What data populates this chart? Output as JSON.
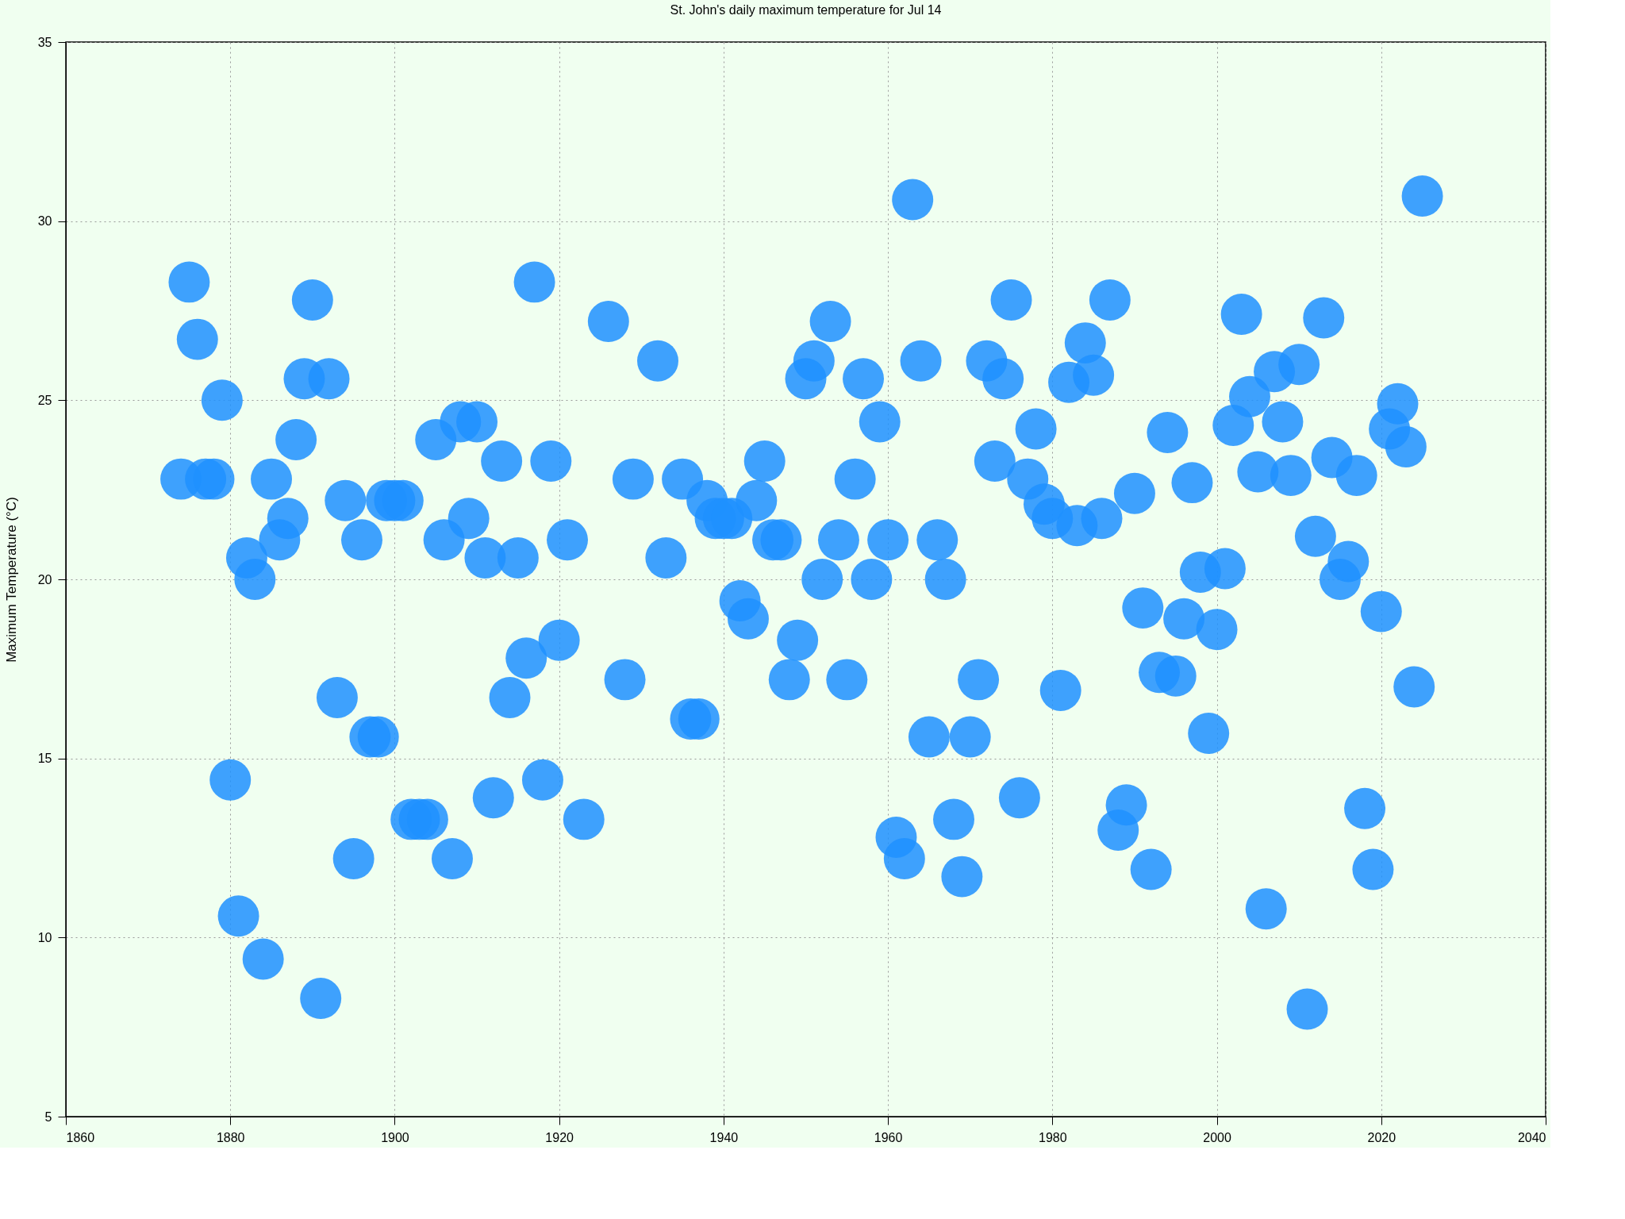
{
  "chart_data": {
    "type": "scatter",
    "title": "St. John's daily maximum temperature for Jul 14",
    "ylabel": "Maximum Temperature (°C)",
    "x": [
      1874,
      1875,
      1876,
      1877,
      1878,
      1879,
      1880,
      1881,
      1882,
      1883,
      1884,
      1885,
      1886,
      1887,
      1888,
      1889,
      1890,
      1891,
      1892,
      1893,
      1894,
      1895,
      1896,
      1897,
      1898,
      1899,
      1900,
      1901,
      1902,
      1903,
      1904,
      1905,
      1906,
      1907,
      1908,
      1909,
      1910,
      1911,
      1912,
      1913,
      1914,
      1915,
      1916,
      1917,
      1918,
      1919,
      1920,
      1921,
      1923,
      1926,
      1928,
      1929,
      1932,
      1933,
      1935,
      1936,
      1937,
      1938,
      1939,
      1940,
      1941,
      1942,
      1943,
      1944,
      1945,
      1946,
      1947,
      1948,
      1949,
      1950,
      1951,
      1952,
      1953,
      1954,
      1955,
      1956,
      1957,
      1958,
      1959,
      1960,
      1961,
      1962,
      1963,
      1964,
      1965,
      1966,
      1967,
      1968,
      1969,
      1970,
      1971,
      1972,
      1973,
      1974,
      1975,
      1976,
      1977,
      1978,
      1979,
      1980,
      1981,
      1982,
      1983,
      1984,
      1985,
      1986,
      1987,
      1988,
      1989,
      1990,
      1991,
      1992,
      1993,
      1994,
      1995,
      1996,
      1997,
      1998,
      1999,
      2000,
      2001,
      2002,
      2003,
      2004,
      2005,
      2006,
      2007,
      2008,
      2009,
      2010,
      2011,
      2012,
      2013,
      2014,
      2015,
      2016,
      2017,
      2018,
      2019,
      2020,
      2021,
      2022,
      2023,
      2024,
      2025
    ],
    "series": [
      {
        "color": "#1e90ff",
        "values": [
          22.8,
          28.3,
          26.7,
          22.8,
          22.8,
          25.0,
          14.4,
          10.6,
          20.6,
          20.0,
          9.4,
          22.8,
          21.1,
          21.7,
          23.9,
          25.6,
          27.8,
          8.3,
          25.6,
          16.7,
          22.2,
          12.2,
          21.1,
          15.6,
          15.6,
          22.2,
          22.2,
          22.2,
          13.3,
          13.3,
          13.3,
          23.9,
          21.1,
          12.2,
          24.4,
          21.7,
          24.4,
          20.6,
          13.9,
          23.3,
          16.7,
          20.6,
          17.8,
          28.3,
          14.4,
          23.3,
          18.3,
          21.1,
          13.3,
          27.2,
          17.2,
          22.8,
          26.1,
          20.6,
          22.8,
          16.1,
          16.1,
          22.2,
          21.7,
          21.7,
          21.7,
          19.4,
          18.9,
          22.2,
          23.3,
          21.1,
          21.1,
          17.2,
          18.3,
          25.6,
          26.1,
          20.0,
          27.2,
          21.1,
          17.2,
          22.8,
          25.6,
          20.0,
          24.4,
          21.1,
          12.8,
          12.2,
          30.6,
          26.1,
          15.6,
          21.1,
          20.0,
          13.3,
          11.7,
          15.6,
          17.2,
          26.1,
          23.3,
          25.6,
          27.8,
          13.9,
          22.8,
          24.2,
          22.1,
          21.7,
          16.9,
          25.5,
          21.5,
          26.6,
          25.7,
          21.7,
          27.8,
          13.0,
          13.7,
          22.4,
          19.2,
          11.9,
          17.4,
          24.1,
          17.3,
          18.9,
          22.7,
          20.2,
          15.7,
          18.6,
          20.3,
          24.3,
          27.4,
          25.1,
          23.0,
          10.8,
          25.8,
          24.4,
          22.9,
          26.0,
          8.0,
          21.2,
          27.3,
          23.4,
          20.0,
          20.5,
          22.9,
          13.6,
          11.9,
          19.1,
          24.2,
          24.9,
          23.7,
          17.0,
          30.7
        ]
      }
    ],
    "xlim": [
      1860,
      2040
    ],
    "xticks": [
      1860,
      1880,
      1900,
      1920,
      1940,
      1960,
      1980,
      2000,
      2020,
      2040
    ],
    "ylim": [
      5,
      35
    ],
    "yticks": [
      5,
      10,
      15,
      20,
      25,
      30,
      35
    ],
    "grid": true,
    "marker": "circle"
  }
}
